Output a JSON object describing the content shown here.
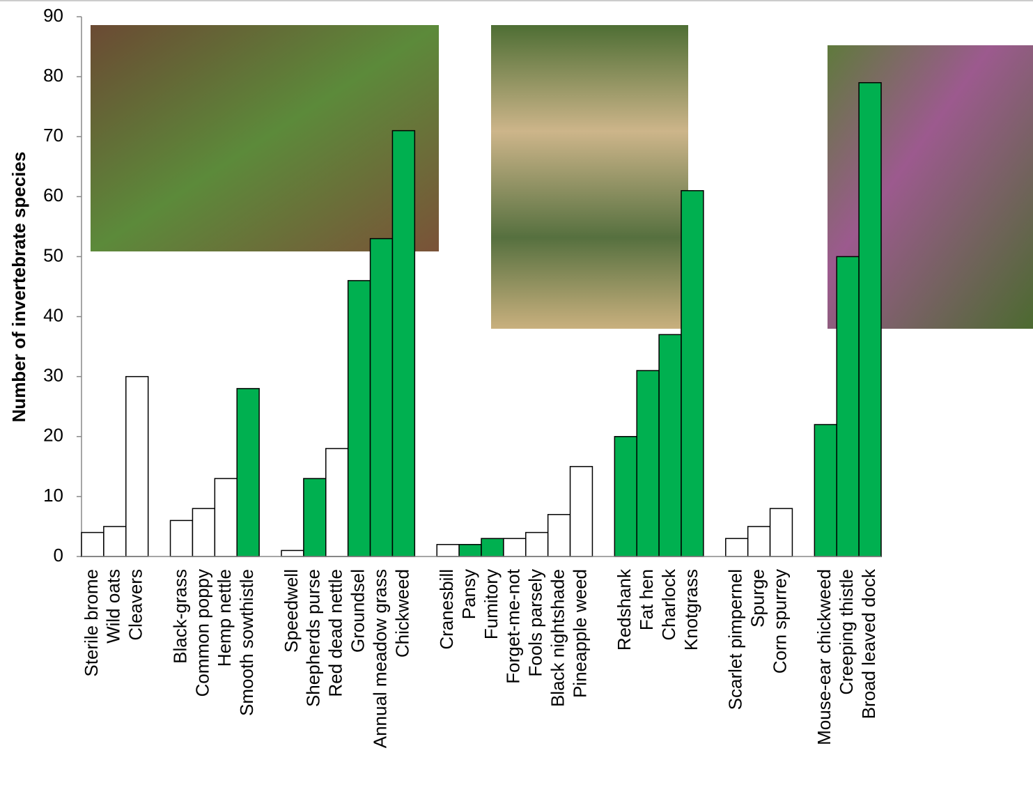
{
  "chart_data": {
    "type": "bar",
    "y_label": "Number of invertebrate species",
    "categories": [
      "Sterile brome",
      "Wild oats",
      "Cleavers",
      null,
      "Black-grass",
      "Common poppy",
      "Hemp nettle",
      "Smooth sowthistle",
      null,
      "Speedwell",
      "Shepherds purse",
      "Red dead nettle",
      "Groundsel",
      "Annual meadow grass",
      "Chickweed",
      null,
      "Cranesbill",
      "Pansy",
      "Fumitory",
      "Forget-me-not",
      "Fools parsely",
      "Black nightshade",
      "Pineapple weed",
      null,
      "Redshank",
      "Fat hen",
      "Charlock",
      "Knotgrass",
      null,
      "Scarlet pimpernel",
      "Spurge",
      "Corn spurrey",
      null,
      "Mouse-ear chickweed",
      "Creeping thistle",
      "Broad leaved dock"
    ],
    "values": [
      4,
      5,
      30,
      null,
      6,
      8,
      13,
      28,
      null,
      1,
      13,
      18,
      46,
      53,
      71,
      null,
      2,
      2,
      3,
      3,
      4,
      7,
      15,
      null,
      20,
      31,
      37,
      61,
      null,
      3,
      5,
      8,
      null,
      22,
      50,
      79
    ],
    "colors": [
      "#ffffff",
      "#ffffff",
      "#ffffff",
      null,
      "#ffffff",
      "#ffffff",
      "#ffffff",
      "#00b050",
      null,
      "#ffffff",
      "#00b050",
      "#ffffff",
      "#00b050",
      "#00b050",
      "#00b050",
      null,
      "#ffffff",
      "#00b050",
      "#00b050",
      "#ffffff",
      "#ffffff",
      "#ffffff",
      "#ffffff",
      null,
      "#00b050",
      "#00b050",
      "#00b050",
      "#00b050",
      null,
      "#ffffff",
      "#ffffff",
      "#ffffff",
      null,
      "#00b050",
      "#00b050",
      "#00b050"
    ],
    "ylim": [
      0,
      90
    ],
    "yticks": [
      0,
      10,
      20,
      30,
      40,
      50,
      60,
      70,
      80,
      90
    ],
    "grid": false
  }
}
